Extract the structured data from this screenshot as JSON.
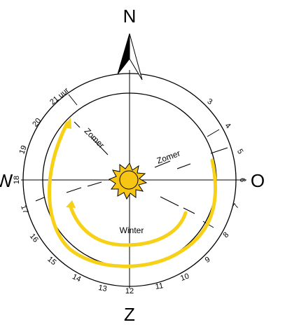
{
  "compass": {
    "north": "N",
    "south": "Z",
    "east": "O",
    "west": "W"
  },
  "hours": {
    "h3": "3",
    "h4": "4",
    "h5": "5",
    "h6": "6",
    "h7": "7",
    "h8": "8",
    "h9": "9",
    "h10": "10",
    "h11": "11",
    "h12": "12",
    "h13": "13",
    "h14": "14",
    "h15": "15",
    "h16": "16",
    "h17": "17",
    "h18": "18",
    "h19": "19",
    "h20": "20",
    "h21": "21 uur"
  },
  "seasons": {
    "summer_label": "Zomer",
    "winter_label": "Winter"
  },
  "colors": {
    "sun_path": "#f7d117",
    "sun_fill": "#f7c614",
    "lines": "#000000"
  }
}
